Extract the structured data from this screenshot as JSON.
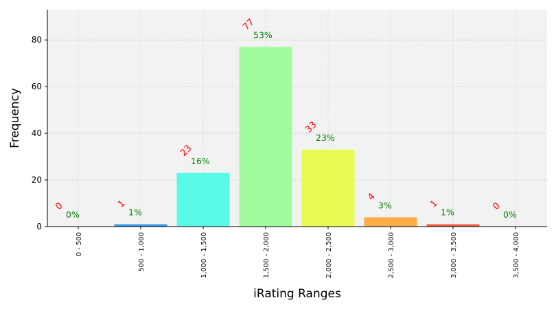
{
  "chart_data": {
    "type": "bar",
    "xlabel": "iRating Ranges",
    "ylabel": "Frequency",
    "categories": [
      "0 - 500",
      "500 - 1,000",
      "1,000 - 1,500",
      "1,500 - 2,000",
      "2,000 - 2,500",
      "2,500 - 3,000",
      "3,000 - 3,500",
      "3,500 - 4,000"
    ],
    "values": [
      0,
      1,
      23,
      77,
      33,
      4,
      1,
      0
    ],
    "percent_labels": [
      "0%",
      "1%",
      "16%",
      "53%",
      "23%",
      "3%",
      "1%",
      "0%"
    ],
    "count_labels": [
      "0",
      "1",
      "23",
      "77",
      "33",
      "4",
      "1",
      "0"
    ],
    "bar_colors": [
      "#2b4ff0",
      "#3399ee",
      "#59fbe6",
      "#a0fc9c",
      "#e7fb52",
      "#fbad47",
      "#ee5a3e",
      "#a01c1c"
    ],
    "count_label_color": "#ff0000",
    "percent_label_color": "#008000",
    "plot_background": "#f2f2f2",
    "ylim": [
      0,
      93
    ],
    "yticks": [
      0,
      20,
      40,
      60,
      80
    ],
    "grid": true
  }
}
